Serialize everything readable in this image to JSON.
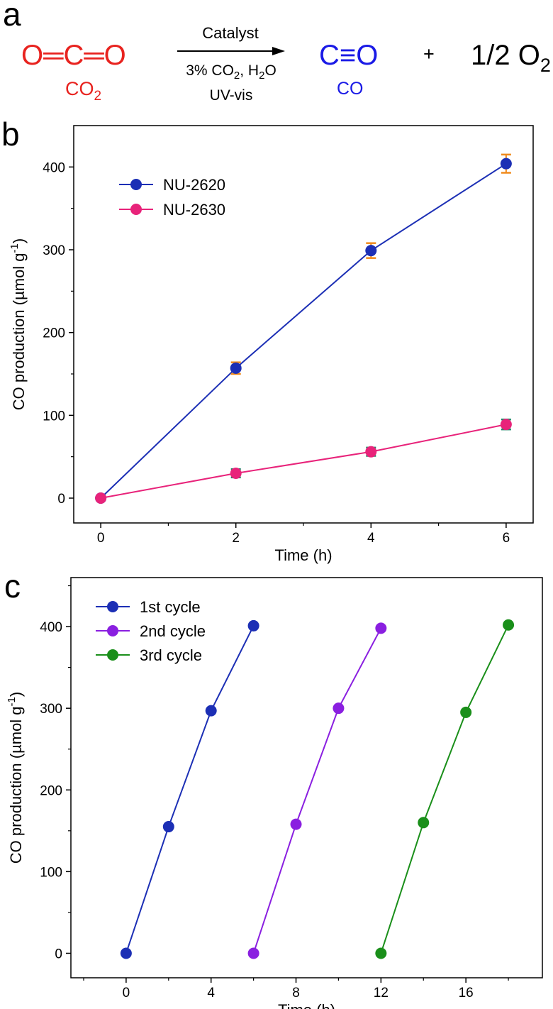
{
  "panel_labels": {
    "a": "a",
    "b": "b",
    "c": "c"
  },
  "scheme": {
    "reactant_formula": "O═C═O",
    "reactant_label": "CO",
    "reactant_sub": "2",
    "catalyst": "Catalyst",
    "condition_1_pre": "3% CO",
    "condition_1_sub": "2",
    "condition_1_post": ", H",
    "condition_1_sub2": "2",
    "condition_1_end": "O",
    "condition_2": "UV-vis",
    "product_formula": "C≡O",
    "product_label": "CO",
    "plus": "+",
    "oxygen_coeff": "1/2 O",
    "oxygen_sub": "2",
    "colors": {
      "co2": "#e8231f",
      "co": "#1a1ae6",
      "arrow": "#000000"
    }
  },
  "chart_data": [
    {
      "type": "line",
      "panel": "b",
      "x": [
        0,
        2,
        4,
        6
      ],
      "xticks": [
        0,
        2,
        4,
        6
      ],
      "yticks": [
        0,
        100,
        200,
        300,
        400
      ],
      "xlim": [
        -0.4,
        6.4
      ],
      "ylim": [
        -30,
        450
      ],
      "xlabel": "Time (h)",
      "ylabel": "CO production (µmol g",
      "ylabel_sup": "-1",
      "ylabel_end": ")",
      "grid": false,
      "legend": "top-left",
      "series": [
        {
          "name": "NU-2620",
          "values": [
            0,
            157,
            299,
            404
          ],
          "errors": [
            0,
            7,
            9,
            11
          ],
          "color": "#1c2fb5",
          "error_color": "#f08a1c"
        },
        {
          "name": "NU-2630",
          "values": [
            0,
            30,
            56,
            89
          ],
          "errors": [
            0,
            5,
            5,
            6
          ],
          "color": "#e8237a",
          "error_color": "#1f8a6a"
        }
      ]
    },
    {
      "type": "line",
      "panel": "c",
      "xticks": [
        0,
        4,
        8,
        12,
        16
      ],
      "yticks": [
        0,
        100,
        200,
        300,
        400
      ],
      "xlim": [
        -2.6,
        19.6
      ],
      "ylim": [
        -30,
        460
      ],
      "xlabel": "Time (h)",
      "ylabel": "CO production (µmol g",
      "ylabel_sup": "-1",
      "ylabel_end": ")",
      "grid": false,
      "legend": "top-left",
      "series": [
        {
          "name": "1st cycle",
          "x": [
            0,
            2,
            4,
            6
          ],
          "values": [
            0,
            155,
            297,
            401
          ],
          "color": "#1c2fb5"
        },
        {
          "name": "2nd cycle",
          "x": [
            6,
            8,
            10,
            12
          ],
          "values": [
            0,
            158,
            300,
            398
          ],
          "color": "#8a1fe0"
        },
        {
          "name": "3rd cycle",
          "x": [
            12,
            14,
            16,
            18
          ],
          "values": [
            0,
            160,
            295,
            402
          ],
          "color": "#1a8f1a"
        }
      ]
    }
  ]
}
